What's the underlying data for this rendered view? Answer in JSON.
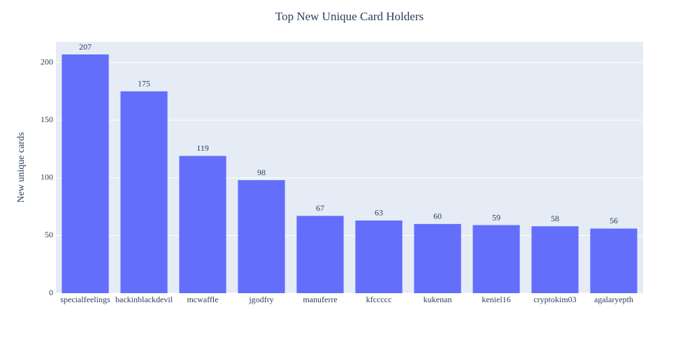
{
  "chart_data": {
    "type": "bar",
    "title": "Top New Unique Card Holders",
    "ylabel": "New unique cards",
    "categories": [
      "specialfeelings",
      "backinblackdevil",
      "mcwaffle",
      "jgodfry",
      "manuferre",
      "kfccccc",
      "kukenan",
      "keniel16",
      "cryptokim03",
      "agalaryepth"
    ],
    "values": [
      207,
      175,
      119,
      98,
      67,
      63,
      60,
      59,
      58,
      56
    ],
    "color": "#636efa",
    "ylim": [
      0,
      217.9
    ],
    "yticks": [
      0,
      50,
      100,
      150,
      200
    ],
    "grid": true
  }
}
